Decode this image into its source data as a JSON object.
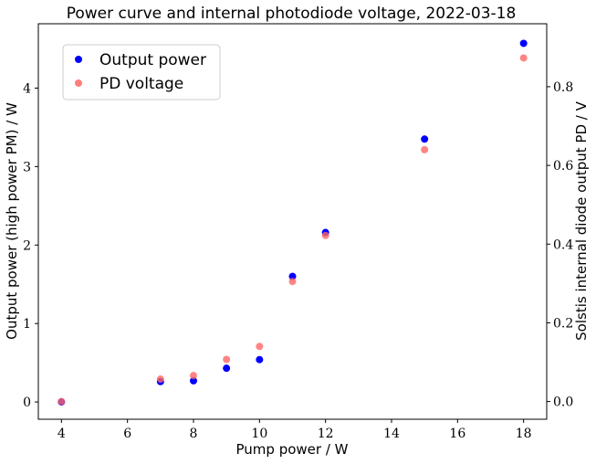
{
  "chart_data": {
    "type": "scatter",
    "title": "Power curve and internal photodiode voltage, 2022-03-18",
    "xlabel": "Pump power / W",
    "ylabel_left": "Output power (high power PM) / W",
    "ylabel_right": "Solstis internal diode output PD / V",
    "xlim": [
      3.3,
      18.7
    ],
    "ylim_left": [
      -0.22,
      4.82
    ],
    "ylim_right": [
      -0.045,
      0.96
    ],
    "xticks": [
      4,
      6,
      8,
      10,
      12,
      14,
      16,
      18
    ],
    "yticks_left": [
      0,
      1,
      2,
      3,
      4
    ],
    "yticks_right": [
      0.0,
      0.2,
      0.4,
      0.6,
      0.8
    ],
    "grid": false,
    "legend_position": "top-left",
    "series": [
      {
        "name": "Output power",
        "axis": "left",
        "color": "#0000ff",
        "x": [
          4,
          7,
          8,
          9,
          10,
          11,
          12,
          15,
          18
        ],
        "y": [
          0.0,
          0.26,
          0.27,
          0.43,
          0.54,
          1.6,
          2.16,
          3.35,
          4.57
        ]
      },
      {
        "name": "PD voltage",
        "axis": "right",
        "color": "#ff6666",
        "x": [
          4,
          7,
          8,
          9,
          10,
          11,
          12,
          15,
          18
        ],
        "y": [
          0.0,
          0.057,
          0.066,
          0.107,
          0.14,
          0.305,
          0.422,
          0.64,
          0.873
        ]
      }
    ]
  }
}
